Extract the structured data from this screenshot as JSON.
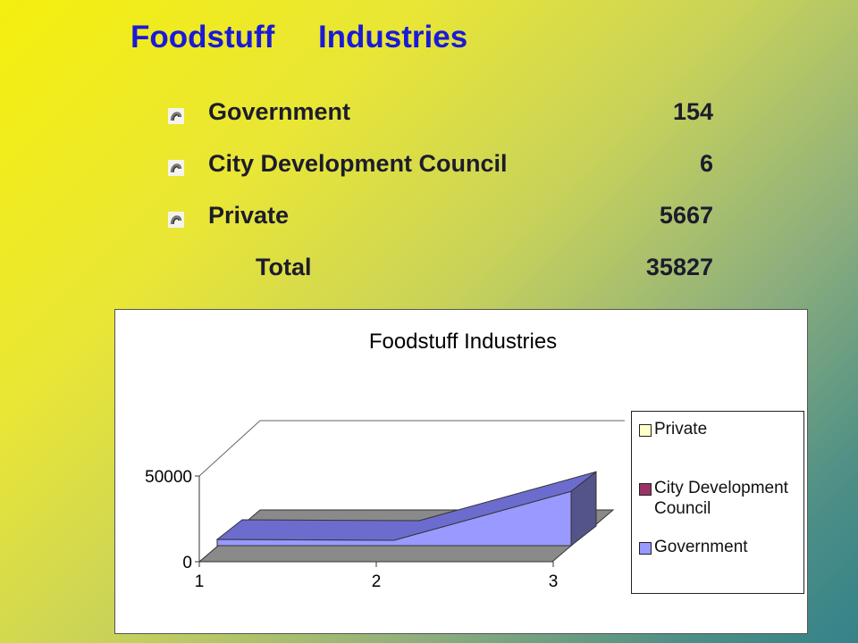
{
  "slide": {
    "title": "Foodstuff     Industries"
  },
  "stats": [
    {
      "label": "Government",
      "value": "154"
    },
    {
      "label": "City Development Council",
      "value": "6"
    },
    {
      "label": "Private",
      "value": "5667"
    }
  ],
  "total": {
    "label": "Total",
    "value": "35827"
  },
  "chart_data": {
    "type": "area",
    "title": "Foodstuff Industries",
    "categories": [
      "1",
      "2",
      "3"
    ],
    "y_ticks": [
      "0",
      "50000"
    ],
    "ylim": [
      0,
      50000
    ],
    "grid": false,
    "legend_position": "right",
    "series": [
      {
        "name": "Government",
        "values": [
          13000,
          12500,
          41000
        ],
        "color": "#9999ff"
      },
      {
        "name": "City Development Council",
        "values": [
          0,
          0,
          0
        ],
        "color": "#993366"
      },
      {
        "name": "Private",
        "values": [
          0,
          0,
          0
        ],
        "color": "#ffffcc"
      }
    ],
    "legend": [
      "Private",
      "City Development Council",
      "Government"
    ]
  }
}
